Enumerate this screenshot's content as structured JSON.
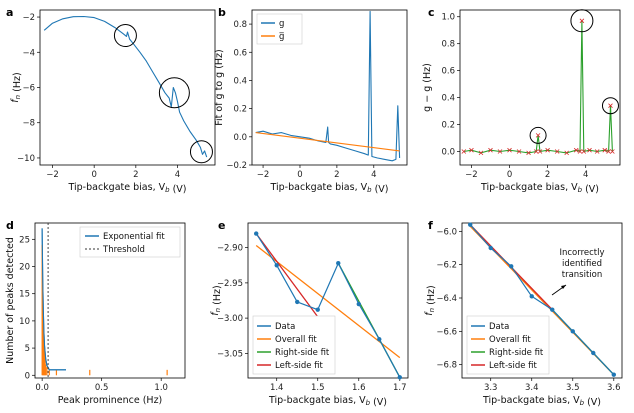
{
  "colors": {
    "blue": "#1f77b4",
    "orange": "#ff7f0e",
    "green": "#2ca02c",
    "red": "#d62728",
    "grey": "#555555"
  },
  "chart_data": [
    {
      "panel": "a",
      "type": "line",
      "xlabel": "Tip-backgate bias, V_b (V)",
      "ylabel": "f_n (Hz)",
      "xlim": [
        -2.6,
        5.8
      ],
      "ylim": [
        -10.4,
        -1.6
      ],
      "xticks": [
        -2,
        0,
        2,
        4
      ],
      "yticks": [
        -10,
        -8,
        -6,
        -4,
        -2
      ],
      "series": [
        {
          "color": "blue",
          "x": [
            -2.4,
            -2.0,
            -1.5,
            -1.0,
            -0.5,
            0,
            0.5,
            1.0,
            1.4,
            1.55,
            1.6,
            1.7,
            1.9,
            2.2,
            2.5,
            2.8,
            3.1,
            3.4,
            3.6,
            3.7,
            3.8,
            3.9,
            4.0,
            4.1,
            4.3,
            4.6,
            4.9,
            5.1,
            5.2,
            5.3,
            5.4
          ],
          "y": [
            -2.75,
            -2.35,
            -2.1,
            -1.98,
            -1.97,
            -2.03,
            -2.25,
            -2.6,
            -2.95,
            -3.1,
            -2.85,
            -3.25,
            -3.55,
            -4.0,
            -4.5,
            -5.1,
            -5.7,
            -6.3,
            -6.6,
            -7.1,
            -6.0,
            -6.3,
            -6.8,
            -7.4,
            -7.9,
            -8.5,
            -9.0,
            -9.4,
            -9.8,
            -9.6,
            -9.95
          ]
        }
      ],
      "circles": [
        {
          "x": 1.5,
          "y": -3.05
        },
        {
          "x": 3.85,
          "y": -6.3
        },
        {
          "x": 5.15,
          "y": -9.65
        }
      ]
    },
    {
      "panel": "b",
      "type": "line",
      "xlabel": "Tip-backgate bias, V_b (V)",
      "ylabel": "Fit of g to g (Hz)",
      "xlim": [
        -2.6,
        5.8
      ],
      "ylim": [
        -0.2,
        0.9
      ],
      "xticks": [
        -2,
        0,
        2,
        4
      ],
      "yticks": [
        -0.2,
        0.0,
        0.2,
        0.4,
        0.6,
        0.8
      ],
      "legend": [
        "g",
        "g̅"
      ],
      "series": [
        {
          "name": "g",
          "color": "blue",
          "x": [
            -2.4,
            -2.0,
            -1.5,
            -1.0,
            -0.5,
            0,
            0.5,
            1.0,
            1.4,
            1.5,
            1.55,
            1.65,
            2.0,
            2.5,
            3.0,
            3.5,
            3.7,
            3.8,
            3.9,
            4.2,
            4.6,
            5.0,
            5.2,
            5.3,
            5.4
          ],
          "y": [
            0.03,
            0.04,
            0.02,
            0.03,
            0.01,
            0.0,
            -0.01,
            -0.03,
            -0.04,
            0.07,
            -0.04,
            -0.05,
            -0.06,
            -0.08,
            -0.1,
            -0.12,
            -0.13,
            0.89,
            -0.14,
            -0.15,
            -0.16,
            -0.17,
            -0.16,
            0.22,
            -0.15
          ]
        },
        {
          "name": "g̅",
          "color": "orange",
          "x": [
            -2.4,
            5.4
          ],
          "y": [
            0.03,
            -0.1
          ]
        }
      ]
    },
    {
      "panel": "c",
      "type": "line",
      "xlabel": "Tip-backgate bias, V_b (V)",
      "ylabel": "g − g (Hz)",
      "xlim": [
        -2.6,
        5.8
      ],
      "ylim": [
        -0.1,
        1.05
      ],
      "xticks": [
        -2,
        0,
        2,
        4
      ],
      "yticks": [
        0.0,
        0.2,
        0.4,
        0.6,
        0.8,
        1.0
      ],
      "series": [
        {
          "color": "green",
          "x": [
            -2.4,
            -2.0,
            -1.5,
            -1.0,
            -0.5,
            0,
            0.5,
            1.0,
            1.4,
            1.5,
            1.6,
            2.0,
            2.5,
            3.0,
            3.5,
            3.7,
            3.8,
            3.9,
            4.2,
            4.6,
            5.0,
            5.2,
            5.3,
            5.4
          ],
          "y": [
            0.0,
            0.01,
            -0.01,
            0.01,
            0.0,
            0.01,
            0.0,
            -0.01,
            0.0,
            0.12,
            0.0,
            0.01,
            0.0,
            -0.01,
            0.01,
            0.0,
            0.97,
            0.0,
            0.01,
            0.0,
            0.01,
            0.0,
            0.34,
            0.0
          ]
        }
      ],
      "peaks": [
        {
          "x": 1.5,
          "y": 0.12
        },
        {
          "x": 3.8,
          "y": 0.97
        },
        {
          "x": 5.3,
          "y": 0.34
        }
      ]
    },
    {
      "panel": "d",
      "type": "line",
      "xlabel": "Peak prominence (Hz)",
      "ylabel": "Number of peaks detected",
      "xlim": [
        -0.06,
        1.2
      ],
      "ylim": [
        -0.5,
        28
      ],
      "xticks": [
        0.0,
        0.5,
        1.0
      ],
      "yticks": [
        0,
        5,
        10,
        15,
        20,
        25
      ],
      "legend": [
        "Exponential fit",
        "Threshold"
      ],
      "series": [
        {
          "name": "Exponential fit",
          "color": "blue",
          "x": [
            0.0,
            0.005,
            0.01,
            0.015,
            0.02,
            0.03,
            0.04,
            0.06,
            0.1,
            0.2
          ],
          "y": [
            27,
            18,
            12,
            8,
            5.5,
            3,
            1.8,
            1,
            1,
            1
          ]
        }
      ],
      "threshold": 0.05
    },
    {
      "panel": "e",
      "type": "line",
      "xlabel": "Tip-backgate bias, V_b (V)",
      "ylabel": "f_n (Hz)",
      "xlim": [
        1.33,
        1.72
      ],
      "ylim": [
        -3.085,
        -2.865
      ],
      "xticks": [
        1.4,
        1.5,
        1.6,
        1.7
      ],
      "yticks": [
        -2.9,
        -2.95,
        -3.0,
        -3.05
      ],
      "legend": [
        "Data",
        "Overall fit",
        "Right-side fit",
        "Left-side fit"
      ],
      "data": {
        "x": [
          1.35,
          1.4,
          1.45,
          1.5,
          1.55,
          1.6,
          1.65,
          1.7
        ],
        "y": [
          -2.88,
          -2.925,
          -2.977,
          -2.988,
          -2.922,
          -2.98,
          -3.03,
          -3.084
        ]
      },
      "fits": [
        {
          "name": "Overall fit",
          "color": "orange",
          "x": [
            1.35,
            1.7
          ],
          "y": [
            -2.897,
            -3.056
          ]
        },
        {
          "name": "Right-side fit",
          "color": "green",
          "x": [
            1.55,
            1.7
          ],
          "y": [
            -2.922,
            -3.084
          ]
        },
        {
          "name": "Left-side fit",
          "color": "red",
          "x": [
            1.35,
            1.5
          ],
          "y": [
            -2.88,
            -2.998
          ]
        }
      ]
    },
    {
      "panel": "f",
      "type": "line",
      "xlabel": "Tip-backgate bias, V_b (V)",
      "ylabel": "f_n (Hz)",
      "xlim": [
        3.23,
        3.62
      ],
      "ylim": [
        -6.88,
        -5.95
      ],
      "xticks": [
        3.3,
        3.4,
        3.5,
        3.6
      ],
      "yticks": [
        -6.0,
        -6.2,
        -6.4,
        -6.6,
        -6.8
      ],
      "legend": [
        "Data",
        "Overall fit",
        "Right-side fit",
        "Left-side fit"
      ],
      "annotation": "Incorrectly identified transition",
      "data": {
        "x": [
          3.25,
          3.3,
          3.35,
          3.4,
          3.45,
          3.5,
          3.55,
          3.6
        ],
        "y": [
          -5.96,
          -6.1,
          -6.21,
          -6.39,
          -6.47,
          -6.6,
          -6.73,
          -6.86
        ]
      },
      "fits": [
        {
          "name": "Overall fit",
          "color": "orange",
          "x": [
            3.25,
            3.6
          ],
          "y": [
            -5.97,
            -6.86
          ]
        },
        {
          "name": "Right-side fit",
          "color": "green",
          "x": [
            3.45,
            3.6
          ],
          "y": [
            -6.47,
            -6.86
          ]
        },
        {
          "name": "Left-side fit",
          "color": "red",
          "x": [
            3.25,
            3.45
          ],
          "y": [
            -5.96,
            -6.47
          ]
        }
      ]
    }
  ]
}
